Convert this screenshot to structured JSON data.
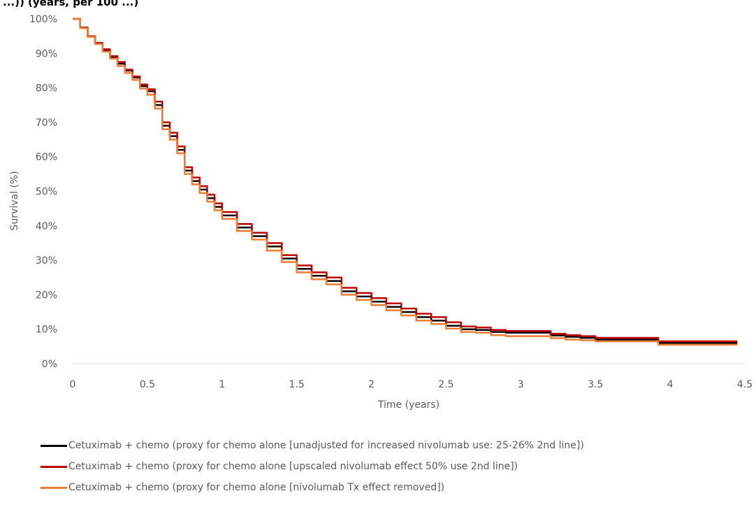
{
  "chart_data": {
    "type": "line",
    "title_fragment": "...)) (years, per 100 ...)",
    "xlabel": "Time (years)",
    "ylabel": "Survival (%)",
    "xlim": [
      0,
      4.5
    ],
    "ylim": [
      0,
      100
    ],
    "x_ticks": [
      "0",
      "0.5",
      "1",
      "1.5",
      "2",
      "2.5",
      "3",
      "3.5",
      "4",
      "4.5"
    ],
    "y_ticks": [
      "0%",
      "10%",
      "20%",
      "30%",
      "40%",
      "50%",
      "60%",
      "70%",
      "80%",
      "90%",
      "100%"
    ],
    "grid": false,
    "legend_position": "bottom",
    "series": [
      {
        "name": "Cetuximab + chemo (proxy for chemo alone [unadjusted for increased nivolumab use: 25-26% 2nd line])",
        "color": "#000000",
        "x": [
          0,
          0.05,
          0.1,
          0.15,
          0.2,
          0.25,
          0.3,
          0.35,
          0.4,
          0.45,
          0.5,
          0.55,
          0.6,
          0.65,
          0.7,
          0.75,
          0.8,
          0.85,
          0.9,
          0.95,
          1.0,
          1.1,
          1.2,
          1.3,
          1.4,
          1.5,
          1.6,
          1.7,
          1.8,
          1.9,
          2.0,
          2.1,
          2.2,
          2.3,
          2.4,
          2.5,
          2.6,
          2.7,
          2.8,
          2.9,
          3.0,
          3.1,
          3.2,
          3.3,
          3.4,
          3.5,
          3.6,
          3.7,
          3.8,
          3.9,
          3.92,
          4.0,
          4.1,
          4.2,
          4.3,
          4.45
        ],
        "y": [
          100,
          97.5,
          95,
          93,
          91,
          89,
          87,
          85,
          83,
          80.5,
          79,
          75,
          69,
          66,
          62,
          56,
          53,
          50.5,
          48,
          45.5,
          43,
          39.5,
          37,
          34,
          30.5,
          27.5,
          25.5,
          24,
          21,
          19.5,
          18,
          16.5,
          15,
          13.5,
          12.5,
          11,
          10,
          9.8,
          9.2,
          9,
          9,
          9,
          8.2,
          7.8,
          7.5,
          7,
          7,
          7,
          7,
          7,
          6,
          6,
          6,
          6,
          6,
          6
        ]
      },
      {
        "name": "Cetuximab + chemo (proxy for chemo alone [upscaled nivolumab effect 50% use 2nd line])",
        "color": "#c00000",
        "x": [
          0,
          0.05,
          0.1,
          0.15,
          0.2,
          0.25,
          0.3,
          0.35,
          0.4,
          0.45,
          0.5,
          0.55,
          0.6,
          0.65,
          0.7,
          0.75,
          0.8,
          0.85,
          0.9,
          0.95,
          1.0,
          1.1,
          1.2,
          1.3,
          1.4,
          1.5,
          1.6,
          1.7,
          1.8,
          1.9,
          2.0,
          2.1,
          2.2,
          2.3,
          2.4,
          2.5,
          2.6,
          2.7,
          2.8,
          2.9,
          3.0,
          3.1,
          3.2,
          3.3,
          3.4,
          3.5,
          3.6,
          3.7,
          3.8,
          3.9,
          3.92,
          4.0,
          4.1,
          4.2,
          4.3,
          4.45
        ],
        "y": [
          100,
          97.5,
          95,
          93,
          91.2,
          89.2,
          87.5,
          85.3,
          83.3,
          81,
          79.6,
          76,
          70,
          67,
          63,
          57,
          54,
          51.5,
          49,
          46.5,
          44,
          40.5,
          38,
          35,
          31.5,
          28.5,
          26.5,
          25,
          22,
          20.5,
          19,
          17.5,
          16,
          14.5,
          13.5,
          12,
          10.8,
          10.5,
          9.8,
          9.5,
          9.5,
          9.5,
          8.7,
          8.3,
          8,
          7.5,
          7.5,
          7.5,
          7.5,
          7.5,
          6.5,
          6.5,
          6.5,
          6.5,
          6.5,
          6.5
        ]
      },
      {
        "name": "Cetuximab + chemo (proxy for chemo alone [nivolumab Tx effect removed])",
        "color": "#ed7d31",
        "x": [
          0,
          0.05,
          0.1,
          0.15,
          0.2,
          0.25,
          0.3,
          0.35,
          0.4,
          0.45,
          0.5,
          0.55,
          0.6,
          0.65,
          0.7,
          0.75,
          0.8,
          0.85,
          0.9,
          0.95,
          1.0,
          1.1,
          1.2,
          1.3,
          1.4,
          1.5,
          1.6,
          1.7,
          1.8,
          1.9,
          2.0,
          2.1,
          2.2,
          2.3,
          2.4,
          2.5,
          2.6,
          2.7,
          2.8,
          2.9,
          3.0,
          3.1,
          3.2,
          3.3,
          3.4,
          3.5,
          3.6,
          3.7,
          3.8,
          3.9,
          3.92,
          4.0,
          4.1,
          4.2,
          4.3,
          4.45
        ],
        "y": [
          100,
          97.3,
          94.8,
          92.7,
          90.5,
          88.5,
          86.3,
          84.3,
          82.3,
          79.8,
          78,
          74,
          68,
          65,
          61,
          55,
          52,
          49.5,
          47,
          44.5,
          42,
          38.5,
          36,
          32.8,
          29.5,
          26.5,
          24.5,
          23,
          20,
          18.5,
          17,
          15.5,
          14,
          12.5,
          11.5,
          10.2,
          9.2,
          9,
          8.3,
          8,
          8,
          8,
          7.4,
          7,
          6.8,
          6.5,
          6.5,
          6.5,
          6.5,
          6.5,
          5.5,
          5.5,
          5.5,
          5.5,
          5.5,
          5.5
        ]
      }
    ]
  }
}
